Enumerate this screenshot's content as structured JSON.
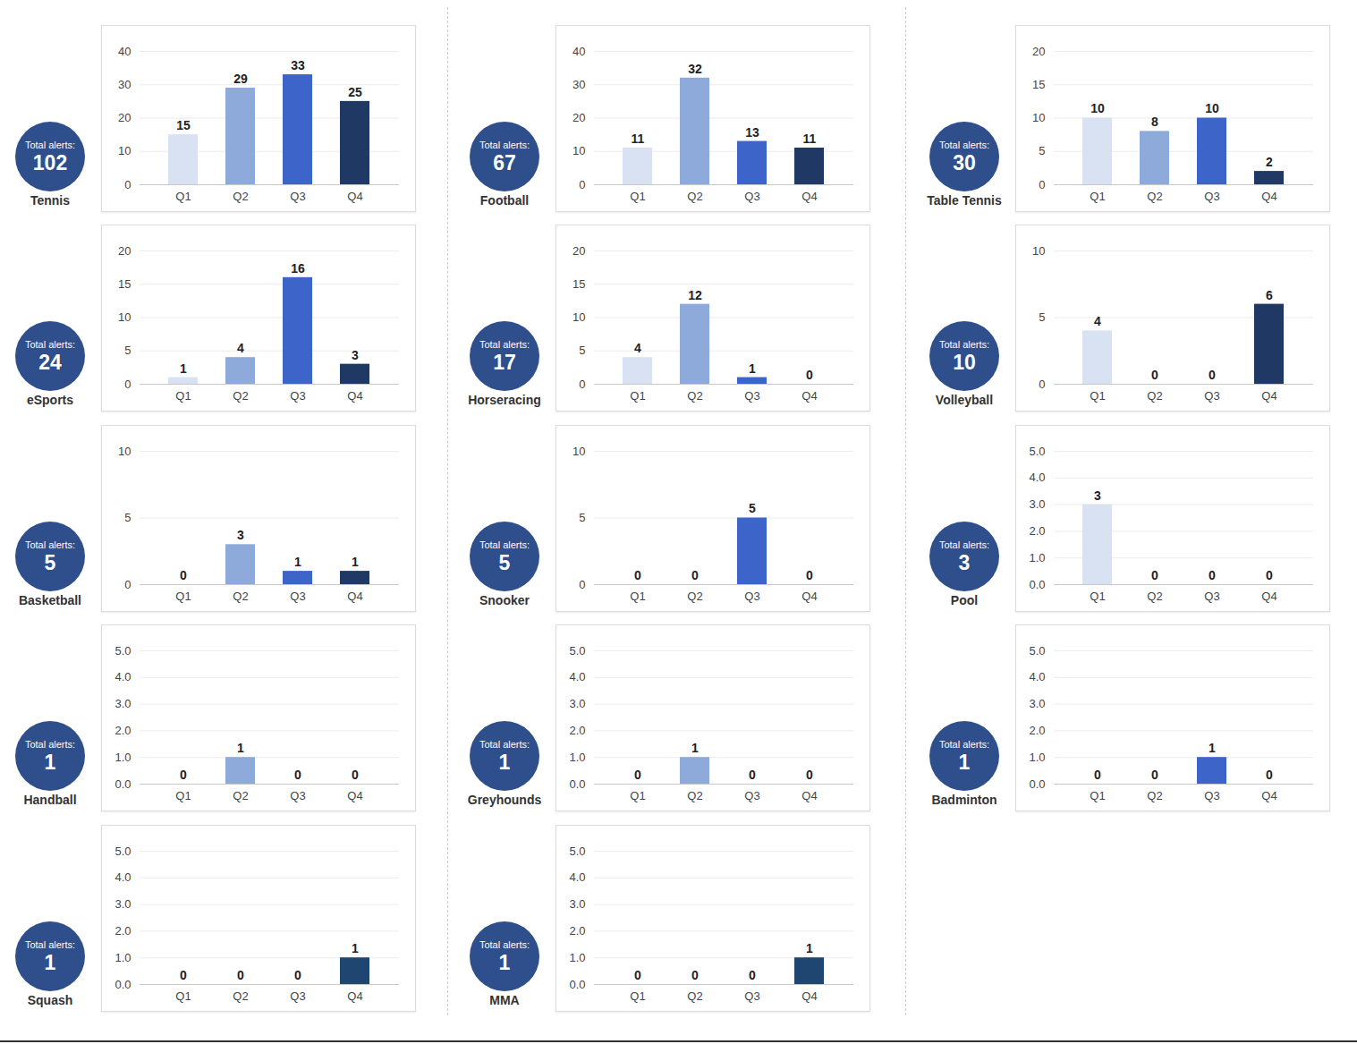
{
  "chart_data": [
    {
      "type": "bar",
      "title": "Tennis",
      "total_label": "Total alerts:",
      "total": 102,
      "categories": [
        "Q1",
        "Q2",
        "Q3",
        "Q4"
      ],
      "values": [
        15,
        29,
        33,
        25
      ],
      "colors": [
        "#d9e2f3",
        "#8eaadb",
        "#3d64c8",
        "#1f3864"
      ],
      "ylim": [
        0,
        40
      ],
      "yticks": [
        0,
        10,
        20,
        30,
        40
      ],
      "grid": true,
      "data_labels": true
    },
    {
      "type": "bar",
      "title": "Football",
      "total_label": "Total alerts:",
      "total": 67,
      "categories": [
        "Q1",
        "Q2",
        "Q3",
        "Q4"
      ],
      "values": [
        11,
        32,
        13,
        11
      ],
      "colors": [
        "#d9e2f3",
        "#8eaadb",
        "#3d64c8",
        "#1f3864"
      ],
      "ylim": [
        0,
        40
      ],
      "yticks": [
        0,
        10,
        20,
        30,
        40
      ],
      "grid": true,
      "data_labels": true
    },
    {
      "type": "bar",
      "title": "Table Tennis",
      "total_label": "Total alerts:",
      "total": 30,
      "categories": [
        "Q1",
        "Q2",
        "Q3",
        "Q4"
      ],
      "values": [
        10,
        8,
        10,
        2
      ],
      "colors": [
        "#d9e2f3",
        "#8eaadb",
        "#3d64c8",
        "#1f3864"
      ],
      "ylim": [
        0,
        20
      ],
      "yticks": [
        0,
        5,
        10,
        15,
        20
      ],
      "grid": true,
      "data_labels": true
    },
    {
      "type": "bar",
      "title": "eSports",
      "total_label": "Total alerts:",
      "total": 24,
      "categories": [
        "Q1",
        "Q2",
        "Q3",
        "Q4"
      ],
      "values": [
        1,
        4,
        16,
        3
      ],
      "colors": [
        "#d9e2f3",
        "#8eaadb",
        "#3d64c8",
        "#1f3864"
      ],
      "ylim": [
        0,
        20
      ],
      "yticks": [
        0,
        5,
        10,
        15,
        20
      ],
      "grid": true,
      "data_labels": true
    },
    {
      "type": "bar",
      "title": "Horseracing",
      "total_label": "Total alerts:",
      "total": 17,
      "categories": [
        "Q1",
        "Q2",
        "Q3",
        "Q4"
      ],
      "values": [
        4,
        12,
        1,
        0
      ],
      "colors": [
        "#d9e2f3",
        "#8eaadb",
        "#3d64c8",
        "#1f3864"
      ],
      "ylim": [
        0,
        20
      ],
      "yticks": [
        0,
        5,
        10,
        15,
        20
      ],
      "grid": true,
      "data_labels": true
    },
    {
      "type": "bar",
      "title": "Volleyball",
      "total_label": "Total alerts:",
      "total": 10,
      "categories": [
        "Q1",
        "Q2",
        "Q3",
        "Q4"
      ],
      "values": [
        4,
        0,
        0,
        6
      ],
      "colors": [
        "#d9e2f3",
        "#8eaadb",
        "#3d64c8",
        "#1f3864"
      ],
      "ylim": [
        0,
        10
      ],
      "yticks": [
        0,
        5,
        10
      ],
      "grid": true,
      "data_labels": true
    },
    {
      "type": "bar",
      "title": "Basketball",
      "total_label": "Total alerts:",
      "total": 5,
      "categories": [
        "Q1",
        "Q2",
        "Q3",
        "Q4"
      ],
      "values": [
        0,
        3,
        1,
        1
      ],
      "colors": [
        "#d9e2f3",
        "#8eaadb",
        "#3d64c8",
        "#1f3864"
      ],
      "ylim": [
        0,
        10
      ],
      "yticks": [
        0,
        5,
        10
      ],
      "grid": true,
      "data_labels": true
    },
    {
      "type": "bar",
      "title": "Snooker",
      "total_label": "Total alerts:",
      "total": 5,
      "categories": [
        "Q1",
        "Q2",
        "Q3",
        "Q4"
      ],
      "values": [
        0,
        0,
        5,
        0
      ],
      "colors": [
        "#d9e2f3",
        "#8eaadb",
        "#3d64c8",
        "#1f3864"
      ],
      "ylim": [
        0,
        10
      ],
      "yticks": [
        0,
        5,
        10
      ],
      "grid": true,
      "data_labels": true
    },
    {
      "type": "bar",
      "title": "Pool",
      "total_label": "Total alerts:",
      "total": 3,
      "categories": [
        "Q1",
        "Q2",
        "Q3",
        "Q4"
      ],
      "values": [
        3,
        0,
        0,
        0
      ],
      "colors": [
        "#d9e2f3",
        "#8eaadb",
        "#3d64c8",
        "#1f3864"
      ],
      "ylim": [
        0,
        5
      ],
      "yticks": [
        0,
        1,
        2,
        3,
        4,
        5
      ],
      "grid": true,
      "data_labels": true
    },
    {
      "type": "bar",
      "title": "Handball",
      "total_label": "Total alerts:",
      "total": 1,
      "categories": [
        "Q1",
        "Q2",
        "Q3",
        "Q4"
      ],
      "values": [
        0,
        1,
        0,
        0
      ],
      "colors": [
        "#d9e2f3",
        "#8eaadb",
        "#3d64c8",
        "#1f3864"
      ],
      "ylim": [
        0,
        5
      ],
      "yticks": [
        0,
        1,
        2,
        3,
        4,
        5
      ],
      "grid": true,
      "data_labels": true
    },
    {
      "type": "bar",
      "title": "Greyhounds",
      "total_label": "Total alerts:",
      "total": 1,
      "categories": [
        "Q1",
        "Q2",
        "Q3",
        "Q4"
      ],
      "values": [
        0,
        1,
        0,
        0
      ],
      "colors": [
        "#d9e2f3",
        "#8eaadb",
        "#3d64c8",
        "#1f3864"
      ],
      "ylim": [
        0,
        5
      ],
      "yticks": [
        0,
        1,
        2,
        3,
        4,
        5
      ],
      "grid": true,
      "data_labels": true
    },
    {
      "type": "bar",
      "title": "Badminton",
      "total_label": "Total alerts:",
      "total": 1,
      "categories": [
        "Q1",
        "Q2",
        "Q3",
        "Q4"
      ],
      "values": [
        0,
        0,
        1,
        0
      ],
      "colors": [
        "#d9e2f3",
        "#8eaadb",
        "#3d64c8",
        "#1f3864"
      ],
      "ylim": [
        0,
        5
      ],
      "yticks": [
        0,
        1,
        2,
        3,
        4,
        5
      ],
      "grid": true,
      "data_labels": true
    },
    {
      "type": "bar",
      "title": "Squash",
      "total_label": "Total alerts:",
      "total": 1,
      "categories": [
        "Q1",
        "Q2",
        "Q3",
        "Q4"
      ],
      "values": [
        0,
        0,
        0,
        1
      ],
      "colors": [
        "#d9e2f3",
        "#8eaadb",
        "#3d64c8",
        "#1e4670"
      ],
      "ylim": [
        0,
        5
      ],
      "yticks": [
        0,
        1,
        2,
        3,
        4,
        5
      ],
      "grid": true,
      "data_labels": true
    },
    {
      "type": "bar",
      "title": "MMA",
      "total_label": "Total alerts:",
      "total": 1,
      "categories": [
        "Q1",
        "Q2",
        "Q3",
        "Q4"
      ],
      "values": [
        0,
        0,
        0,
        1
      ],
      "colors": [
        "#d9e2f3",
        "#8eaadb",
        "#3d64c8",
        "#1e4670"
      ],
      "ylim": [
        0,
        5
      ],
      "yticks": [
        0,
        1,
        2,
        3,
        4,
        5
      ],
      "grid": true,
      "data_labels": true
    }
  ]
}
